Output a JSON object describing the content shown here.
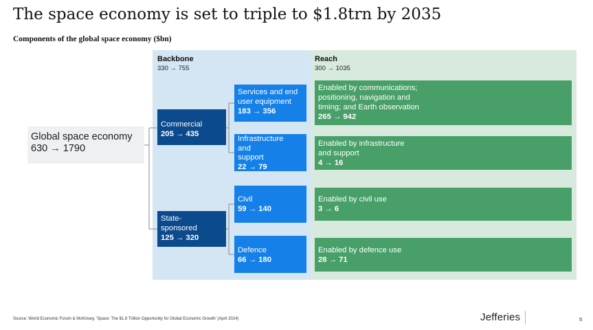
{
  "title": "The space economy is set to triple to $1.8trn by 2035",
  "subtitle": "Components of the global space economy ($bn)",
  "backbone": {
    "label": "Backbone",
    "range": "330 → 755"
  },
  "reach": {
    "label": "Reach",
    "range": "300 → 1035"
  },
  "total": {
    "label": "Global space economy",
    "value": "630 → 1790"
  },
  "commercial": {
    "label": "Commercial",
    "value": "205 → 435"
  },
  "state": {
    "label": "State-sponsored",
    "label_line1": "State-",
    "label_line2": "sponsored",
    "value": "125 → 320"
  },
  "services": {
    "label_line1": "Services and end",
    "label_line2": "user equipment",
    "value": "183 → 356"
  },
  "infrastructure": {
    "label_line1": "Infrastructure",
    "label_line2": "and",
    "label_line3": "support",
    "value": "22 → 79"
  },
  "civil": {
    "label": "Civil",
    "value": "59 → 140"
  },
  "defence": {
    "label": "Defence",
    "value": "66 → 180"
  },
  "reach_comms": {
    "line1": "Enabled by communications;",
    "line2": "positioning, navigation and",
    "line3": "timing; and Earth observation",
    "value": "265 → 942"
  },
  "reach_infra": {
    "line1": "Enabled by infrastructure",
    "line2": "and support",
    "value": "4 → 16"
  },
  "reach_civil": {
    "line1": "Enabled by civil use",
    "value": "3 → 6"
  },
  "reach_defence": {
    "line1": "Enabled by defence use",
    "value": "28 → 71"
  },
  "footer": {
    "source": "Source: World Economic Forum & McKinsey, 'Space: The $1.8 Trillion Opportunity for Global Economic Growth' (April 2024)",
    "logo": "Jefferies",
    "page": "5"
  },
  "colors": {
    "dark_blue": "#0b4a8c",
    "bright_blue": "#1480e8",
    "green": "#48a068",
    "backbone_bg": "#d4e5f4",
    "reach_bg": "#d7eadd"
  }
}
